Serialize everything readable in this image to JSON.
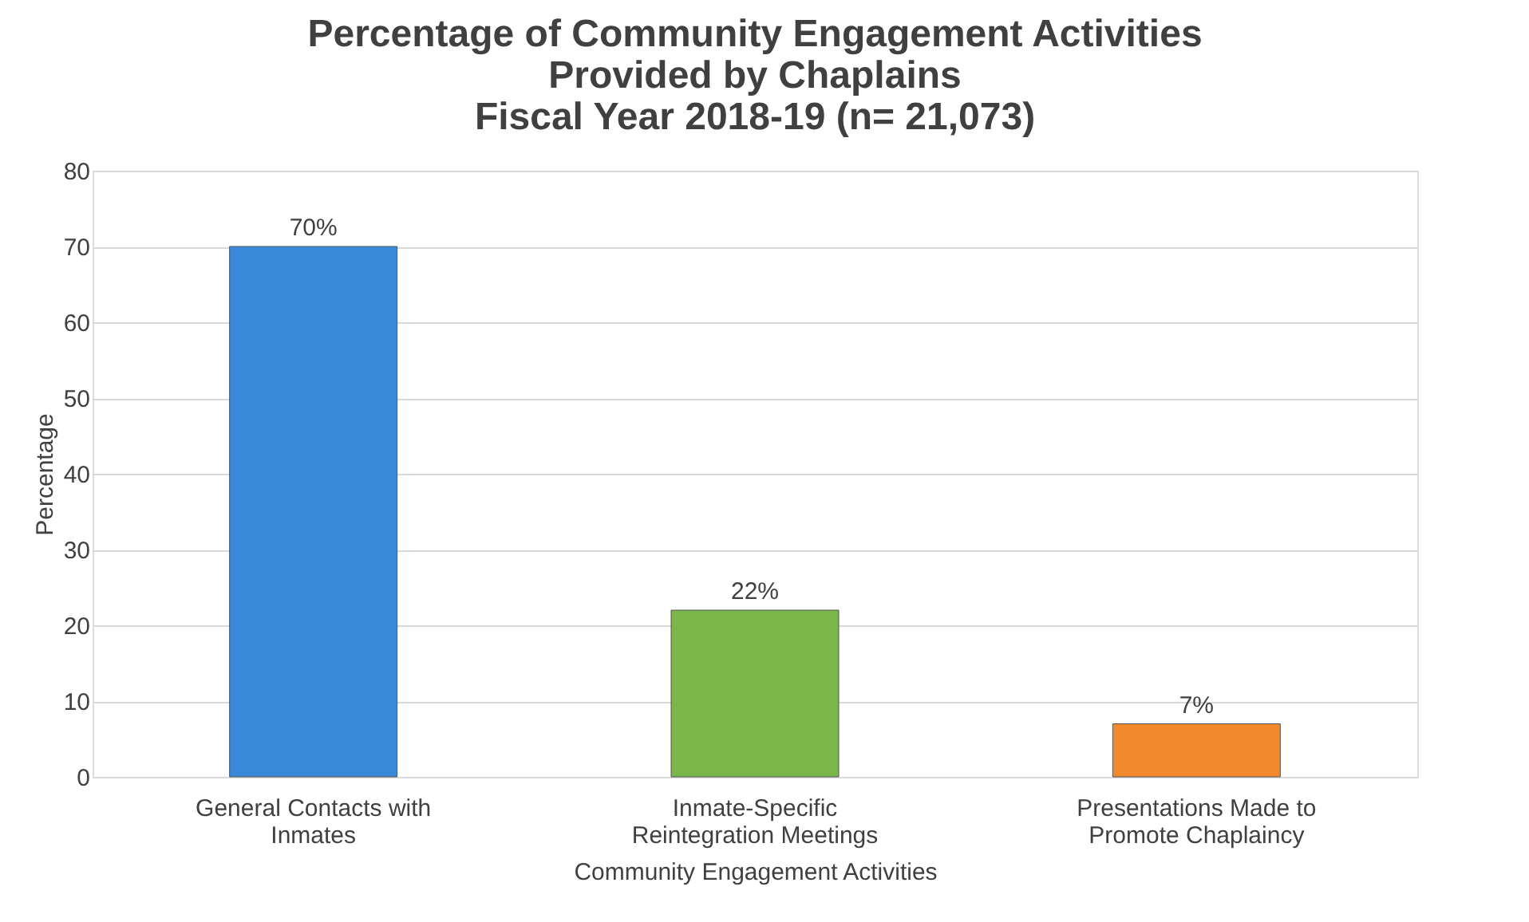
{
  "chart_data": {
    "type": "bar",
    "title": [
      "Percentage of Community Engagement Activities",
      "Provided by Chaplains",
      "Fiscal Year 2018-19 (n= 21,073)"
    ],
    "xlabel": "Community Engagement Activities",
    "ylabel": "Percentage",
    "categories": [
      "General Contacts with Inmates",
      "Inmate-Specific Reintegration Meetings",
      "Presentations Made to Promote Chaplaincy"
    ],
    "values": [
      70,
      22,
      7
    ],
    "value_labels": [
      "70%",
      "22%",
      "7%"
    ],
    "colors": [
      "#3a89d8",
      "#7ab648",
      "#f28a2d"
    ],
    "ylim": [
      0,
      80
    ],
    "yticks": [
      0,
      10,
      20,
      30,
      40,
      50,
      60,
      70,
      80
    ],
    "grid": "y"
  }
}
